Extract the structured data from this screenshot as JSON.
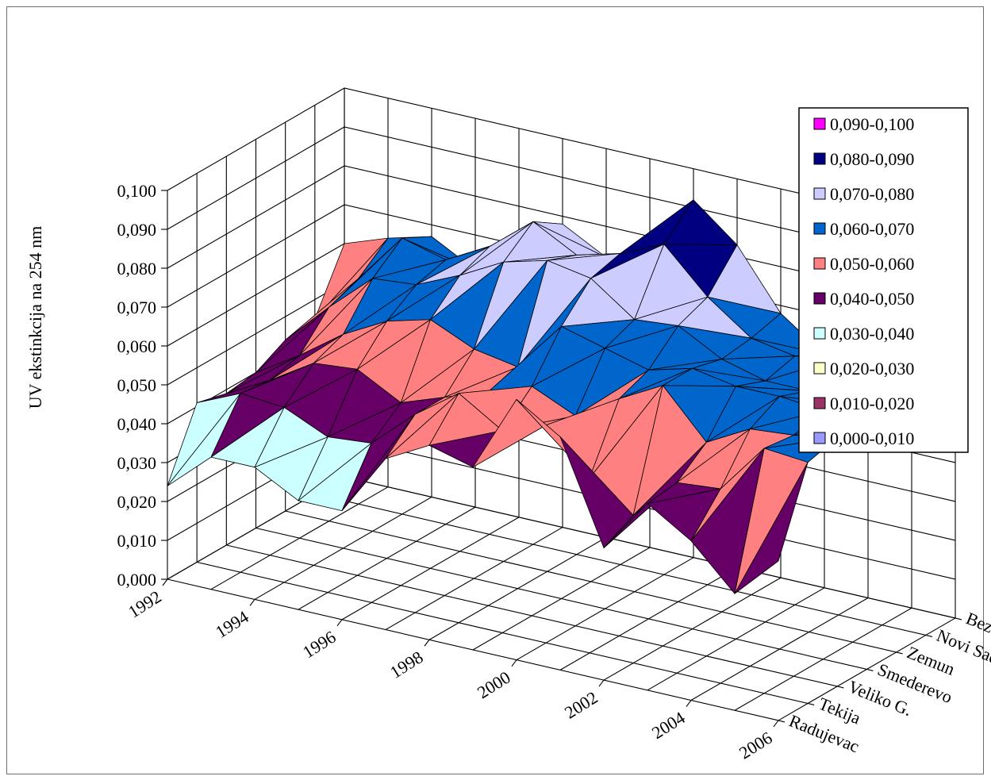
{
  "chart_data": {
    "type": "surface",
    "ylabel": "UV ekstinkcija na 254 nm",
    "xlabel": "",
    "title": "",
    "zlim": [
      0,
      0.1
    ],
    "z_ticks": [
      "0,000",
      "0,010",
      "0,020",
      "0,030",
      "0,040",
      "0,050",
      "0,060",
      "0,070",
      "0,080",
      "0,090",
      "0,100"
    ],
    "x_ticks": [
      "1992",
      "1994",
      "1996",
      "1998",
      "2000",
      "2002",
      "2004",
      "2006"
    ],
    "x": [
      1992,
      1993,
      1994,
      1995,
      1996,
      1997,
      1998,
      1999,
      2000,
      2001,
      2002,
      2003,
      2004,
      2005,
      2006
    ],
    "stations": [
      "Bezdan",
      "Novi Sad",
      "Zemun",
      "Smederevo",
      "Veliko G.",
      "Tekija",
      "Radujevac"
    ],
    "grid": true,
    "legend_position": "right",
    "legend": [
      {
        "label": "0,090-0,100",
        "color": "#ff00ff"
      },
      {
        "label": "0,080-0,090",
        "color": "#000080"
      },
      {
        "label": "0,070-0,080",
        "color": "#ccccff"
      },
      {
        "label": "0,060-0,070",
        "color": "#0066cc"
      },
      {
        "label": "0,050-0,060",
        "color": "#ff8080"
      },
      {
        "label": "0,040-0,050",
        "color": "#660066"
      },
      {
        "label": "0,030-0,040",
        "color": "#ccffff"
      },
      {
        "label": "0,020-0,030",
        "color": "#ffffcc"
      },
      {
        "label": "0,010-0,020",
        "color": "#993366"
      },
      {
        "label": "0,000-0,010",
        "color": "#9999ff"
      }
    ],
    "series": [
      {
        "name": "Radujevac",
        "values": [
          0.024,
          0.034,
          0.034,
          0.028,
          0.028,
          0.044,
          0.05,
          0.047,
          0.067,
          0.06,
          0.034,
          0.048,
          0.041,
          0.03,
          0.041
        ]
      },
      {
        "name": "Tekija",
        "values": [
          0.041,
          0.046,
          0.045,
          0.04,
          0.041,
          0.051,
          0.059,
          0.052,
          0.056,
          0.045,
          0.038,
          0.049,
          0.05,
          0.063,
          0.062
        ]
      },
      {
        "name": "Veliko G.",
        "values": [
          0.039,
          0.045,
          0.052,
          0.053,
          0.047,
          0.051,
          0.055,
          0.059,
          0.054,
          0.061,
          0.067,
          0.055,
          0.061,
          0.062,
          0.064
        ]
      },
      {
        "name": "Smederevo",
        "values": [
          0.04,
          0.047,
          0.055,
          0.061,
          0.064,
          0.059,
          0.057,
          0.07,
          0.067,
          0.064,
          0.067,
          0.065,
          0.065,
          0.064,
          0.066
        ]
      },
      {
        "name": "Zemun",
        "values": [
          0.044,
          0.055,
          0.065,
          0.066,
          0.071,
          0.077,
          0.08,
          0.078,
          0.07,
          0.071,
          0.065,
          0.062,
          0.062,
          0.061,
          0.06
        ]
      },
      {
        "name": "Novi Sad",
        "values": [
          0.045,
          0.058,
          0.071,
          0.068,
          0.074,
          0.083,
          0.077,
          0.08,
          0.085,
          0.074,
          0.066,
          0.064,
          0.066,
          0.063,
          0.058
        ]
      },
      {
        "name": "Bezdan",
        "values": [
          0.06,
          0.064,
          0.067,
          0.061,
          0.072,
          0.078,
          0.072,
          0.073,
          0.092,
          0.083,
          0.068,
          0.06,
          0.063,
          0.058,
          0.055
        ]
      }
    ]
  }
}
